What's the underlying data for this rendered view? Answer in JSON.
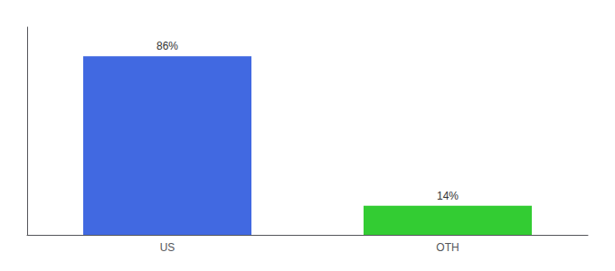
{
  "chart_data": {
    "type": "bar",
    "categories": [
      "US",
      "OTH"
    ],
    "values": [
      86,
      14
    ],
    "value_labels": [
      "86%",
      "14%"
    ],
    "colors": [
      "#4169e1",
      "#33cc33"
    ],
    "ylim": [
      0,
      100
    ],
    "yticks": [],
    "grid": false,
    "data_labels": true,
    "tick_labels": "x"
  }
}
